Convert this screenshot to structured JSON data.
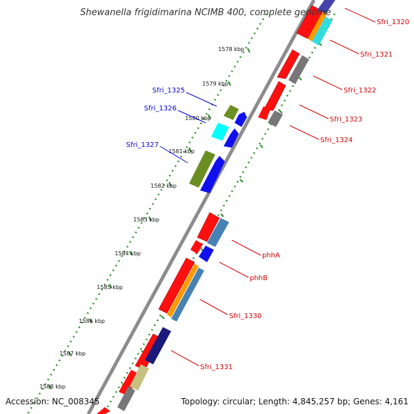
{
  "title": "Shewanella frigidimarina NCIMB 400, complete genome",
  "accession": "Accession: NC_008345",
  "topology": "Topology: circular; Length: 4,845,257 bp; Genes: 4,161",
  "colors": {
    "backbone": "#8c8c8c",
    "tick": "#2e8b2e",
    "forward_label": "#0000cc",
    "reverse_label": "#cc0000"
  },
  "kbp_ticks": [
    "1578 kbp",
    "1579 kbp",
    "1580 kbp",
    "1581 kbp",
    "1582 kbp",
    "1583 kbp",
    "1584 kbp",
    "1585 kbp",
    "1586 kbp",
    "1587 kbp",
    "1588 kbp"
  ],
  "forward_labels": [
    "Sfri_1325",
    "Sfri_1326",
    "Sfri_1327"
  ],
  "reverse_labels": [
    "Sfri_1320",
    "Sfri_1321",
    "Sfri_1322",
    "Sfri_1323",
    "Sfri_1324",
    "phhA",
    "phhB",
    "Sfri_1330",
    "Sfri_1331"
  ]
}
